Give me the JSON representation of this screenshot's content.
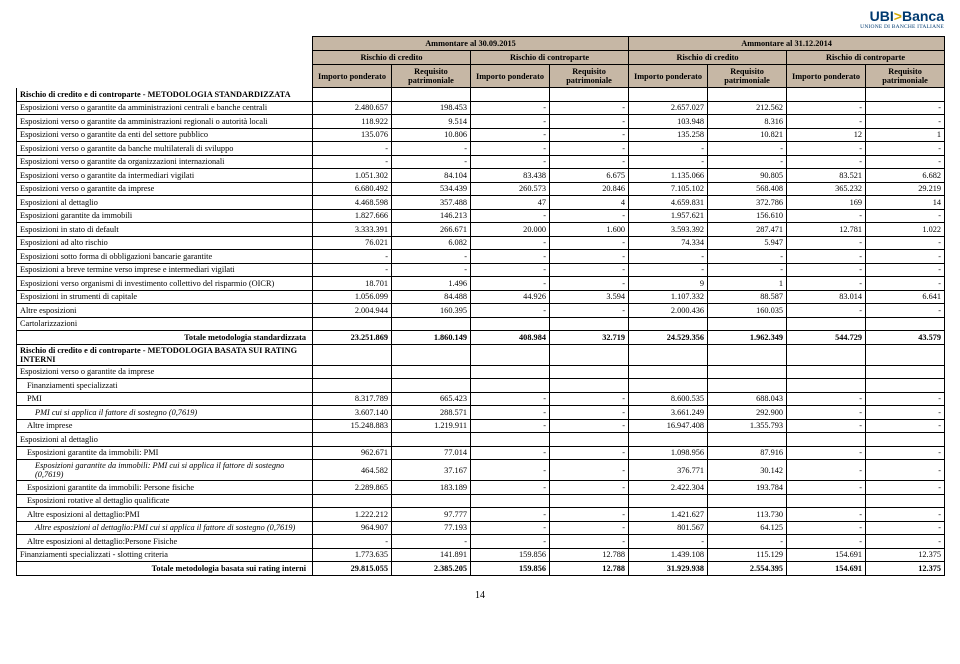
{
  "logo": {
    "line1": "UBI",
    "star": ">",
    "line2": "Banca",
    "sub": "UNIONE DI BANCHE ITALIANE"
  },
  "headers": {
    "period_a": "Ammontare al 30.09.2015",
    "period_b": "Ammontare al 31.12.2014",
    "risk_credit": "Rischio di credito",
    "risk_counterparty": "Rischio di controparte",
    "col_imp": "Importo ponderato",
    "col_req": "Requisito patrimoniale"
  },
  "section1": "Rischio di credito e di controparte - METODOLOGIA STANDARDIZZATA",
  "section2": "Rischio di credito e di controparte - METODOLOGIA BASATA SUI RATING INTERNI",
  "total1": "Totale metodologia standardizzata",
  "total2": "Totale metodologia basata sui rating interni",
  "rows1": [
    {
      "l": "Esposizioni verso o garantite da amministrazioni centrali e banche centrali",
      "v": [
        "2.480.657",
        "198.453",
        "-",
        "-",
        "2.657.027",
        "212.562",
        "-",
        "-"
      ]
    },
    {
      "l": "Esposizioni verso o garantite da amministrazioni regionali o autorità locali",
      "v": [
        "118.922",
        "9.514",
        "-",
        "-",
        "103.948",
        "8.316",
        "-",
        "-"
      ]
    },
    {
      "l": "Esposizioni verso o garantite da enti del settore pubblico",
      "v": [
        "135.076",
        "10.806",
        "-",
        "-",
        "135.258",
        "10.821",
        "12",
        "1"
      ]
    },
    {
      "l": "Esposizioni verso o garantite da banche multilaterali di sviluppo",
      "v": [
        "-",
        "-",
        "-",
        "-",
        "-",
        "-",
        "-",
        "-"
      ]
    },
    {
      "l": "Esposizioni verso o garantite da organizzazioni internazionali",
      "v": [
        "-",
        "-",
        "-",
        "-",
        "-",
        "-",
        "-",
        "-"
      ]
    },
    {
      "l": "Esposizioni verso o garantite da intermediari vigilati",
      "v": [
        "1.051.302",
        "84.104",
        "83.438",
        "6.675",
        "1.135.066",
        "90.805",
        "83.521",
        "6.682"
      ]
    },
    {
      "l": "Esposizioni verso o garantite da imprese",
      "v": [
        "6.680.492",
        "534.439",
        "260.573",
        "20.846",
        "7.105.102",
        "568.408",
        "365.232",
        "29.219"
      ]
    },
    {
      "l": "Esposizioni al dettaglio",
      "v": [
        "4.468.598",
        "357.488",
        "47",
        "4",
        "4.659.831",
        "372.786",
        "169",
        "14"
      ]
    },
    {
      "l": "Esposizioni garantite da immobili",
      "v": [
        "1.827.666",
        "146.213",
        "-",
        "-",
        "1.957.621",
        "156.610",
        "-",
        "-"
      ]
    },
    {
      "l": "Esposizioni in stato di default",
      "v": [
        "3.333.391",
        "266.671",
        "20.000",
        "1.600",
        "3.593.392",
        "287.471",
        "12.781",
        "1.022"
      ]
    },
    {
      "l": "Esposizioni ad alto rischio",
      "v": [
        "76.021",
        "6.082",
        "-",
        "-",
        "74.334",
        "5.947",
        "-",
        "-"
      ]
    },
    {
      "l": "Esposizioni sotto forma di obbligazioni bancarie garantite",
      "v": [
        "-",
        "-",
        "-",
        "-",
        "-",
        "-",
        "-",
        "-"
      ]
    },
    {
      "l": "Esposizioni a breve termine verso imprese e intermediari vigilati",
      "v": [
        "-",
        "-",
        "-",
        "-",
        "-",
        "-",
        "-",
        "-"
      ]
    },
    {
      "l": "Esposizioni verso organismi di investimento collettivo del risparmio (OICR)",
      "v": [
        "18.701",
        "1.496",
        "-",
        "-",
        "9",
        "1",
        "-",
        "-"
      ]
    },
    {
      "l": "Esposizioni in strumenti di capitale",
      "v": [
        "1.056.099",
        "84.488",
        "44.926",
        "3.594",
        "1.107.332",
        "88.587",
        "83.014",
        "6.641"
      ]
    },
    {
      "l": "Altre esposizioni",
      "v": [
        "2.004.944",
        "160.395",
        "-",
        "-",
        "2.000.436",
        "160.035",
        "-",
        "-"
      ]
    },
    {
      "l": "Cartolarizzazioni",
      "v": [
        "",
        "",
        "",
        "",
        "",
        "",
        "",
        ""
      ]
    }
  ],
  "total1v": [
    "23.251.869",
    "1.860.149",
    "408.984",
    "32.719",
    "24.529.356",
    "1.962.349",
    "544.729",
    "43.579"
  ],
  "rows2": [
    {
      "l": "Esposizioni verso o garantite da imprese",
      "v": [
        "",
        "",
        "",
        "",
        "",
        "",
        "",
        ""
      ],
      "cls": ""
    },
    {
      "l": "Finanziamenti specializzati",
      "v": [
        "",
        "",
        "",
        "",
        "",
        "",
        "",
        ""
      ],
      "cls": "indent1"
    },
    {
      "l": "PMI",
      "v": [
        "8.317.789",
        "665.423",
        "-",
        "-",
        "8.600.535",
        "688.043",
        "-",
        "-"
      ],
      "cls": "indent1"
    },
    {
      "l": "PMI cui si applica il fattore di sostegno (0,7619)",
      "v": [
        "3.607.140",
        "288.571",
        "-",
        "-",
        "3.661.249",
        "292.900",
        "-",
        "-"
      ],
      "cls": "indent2 italic"
    },
    {
      "l": "Altre imprese",
      "v": [
        "15.248.883",
        "1.219.911",
        "-",
        "-",
        "16.947.408",
        "1.355.793",
        "-",
        "-"
      ],
      "cls": "indent1"
    },
    {
      "l": "Esposizioni al dettaglio",
      "v": [
        "",
        "",
        "",
        "",
        "",
        "",
        "",
        ""
      ],
      "cls": ""
    },
    {
      "l": "Esposizioni garantite da immobili: PMI",
      "v": [
        "962.671",
        "77.014",
        "-",
        "-",
        "1.098.956",
        "87.916",
        "-",
        "-"
      ],
      "cls": "indent1"
    },
    {
      "l": "Esposizioni garantite da immobili: PMI cui si applica il fattore di sostegno (0,7619)",
      "v": [
        "464.582",
        "37.167",
        "-",
        "-",
        "376.771",
        "30.142",
        "-",
        "-"
      ],
      "cls": "indent2 italic"
    },
    {
      "l": "Esposizioni garantite da immobili: Persone fisiche",
      "v": [
        "2.289.865",
        "183.189",
        "-",
        "-",
        "2.422.304",
        "193.784",
        "-",
        "-"
      ],
      "cls": "indent1"
    },
    {
      "l": "Esposizioni rotative al dettaglio qualificate",
      "v": [
        "",
        "",
        "",
        "",
        "",
        "",
        "",
        ""
      ],
      "cls": "indent1"
    },
    {
      "l": "Altre esposizioni al dettaglio:PMI",
      "v": [
        "1.222.212",
        "97.777",
        "-",
        "-",
        "1.421.627",
        "113.730",
        "-",
        "-"
      ],
      "cls": "indent1"
    },
    {
      "l": "Altre esposizioni al dettaglio:PMI cui si applica il fattore di sostegno (0,7619)",
      "v": [
        "964.907",
        "77.193",
        "-",
        "-",
        "801.567",
        "64.125",
        "-",
        "-"
      ],
      "cls": "indent2 italic"
    },
    {
      "l": "Altre esposizioni al dettaglio:Persone Fisiche",
      "v": [
        "-",
        "-",
        "-",
        "-",
        "-",
        "-",
        "-",
        "-"
      ],
      "cls": "indent1"
    },
    {
      "l": "Finanziamenti specializzati - slotting criteria",
      "v": [
        "1.773.635",
        "141.891",
        "159.856",
        "12.788",
        "1.439.108",
        "115.129",
        "154.691",
        "12.375"
      ],
      "cls": ""
    }
  ],
  "total2v": [
    "29.815.055",
    "2.385.205",
    "159.856",
    "12.788",
    "31.929.938",
    "2.554.395",
    "154.691",
    "12.375"
  ],
  "pageNum": "14"
}
